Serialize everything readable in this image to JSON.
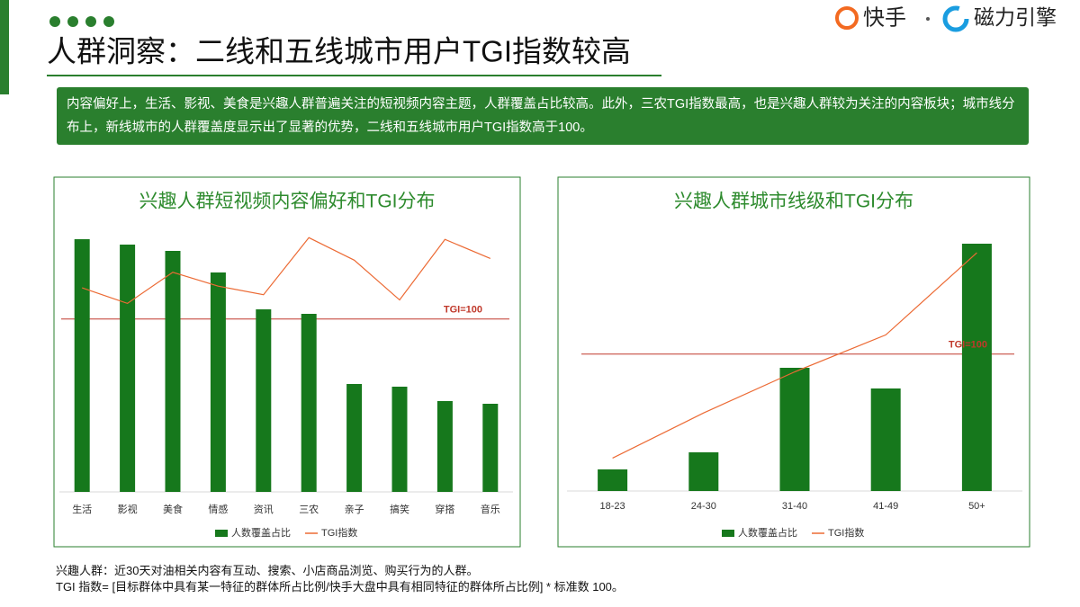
{
  "header": {
    "title": "人群洞察：二线和五线城市用户TGI指数较高",
    "logo_left": "快手",
    "logo_right": "磁力引擎"
  },
  "summary": "内容偏好上，生活、影视、美食是兴趣人群普遍关注的短视频内容主题，人群覆盖占比较高。此外，三农TGI指数最高，也是兴趣人群较为关注的内容板块；城市线分布上，新线城市的人群覆盖度显示出了显著的优势，二线和五线城市用户TGI指数高于100。",
  "chart_data": [
    {
      "type": "bar_line",
      "title": "兴趣人群短视频内容偏好和TGI分布",
      "categories": [
        "生活",
        "影视",
        "美食",
        "情感",
        "资讯",
        "三农",
        "亲子",
        "搞笑",
        "穿搭",
        "音乐"
      ],
      "series": [
        {
          "name": "人数覆盖占比",
          "color": "#16781c",
          "type": "bar",
          "values": [
            28.1,
            27.5,
            26.8,
            24.4,
            20.3,
            19.8,
            12.0,
            11.7,
            10.1,
            9.8
          ]
        },
        {
          "name": "TGI指数",
          "color": "#ec6a34",
          "type": "line",
          "axis": "y2",
          "values": [
            118,
            109,
            127,
            119,
            114,
            147,
            134,
            111,
            146,
            135
          ]
        }
      ],
      "ylim": [
        0,
        30
      ],
      "y2lim": [
        0,
        156
      ],
      "reference": {
        "value": 100,
        "label": "TGI=100",
        "color": "#c0392b"
      }
    },
    {
      "type": "bar_line",
      "title": "兴趣人群城市线级和TGI分布",
      "categories": [
        "18-23",
        "24-30",
        "31-40",
        "41-49",
        "50+"
      ],
      "series": [
        {
          "name": "人数覆盖占比",
          "color": "#16781c",
          "type": "bar",
          "values": [
            2.4,
            4.3,
            13.7,
            11.4,
            27.5
          ]
        },
        {
          "name": "TGI指数",
          "color": "#ec6a34",
          "type": "line",
          "axis": "y2",
          "values": [
            24,
            57,
            87,
            114,
            174
          ]
        }
      ],
      "ylim": [
        0,
        30
      ],
      "y2lim": [
        0,
        197
      ],
      "reference": {
        "value": 100,
        "label": "TGI=100",
        "color": "#c0392b"
      }
    }
  ],
  "notes": [
    "兴趣人群：近30天对油相关内容有互动、搜索、小店商品浏览、购买行为的人群。",
    "TGI 指数= [目标群体中具有某一特征的群体所占比例/快手大盘中具有相同特征的群体所占比例] * 标准数 100。"
  ]
}
